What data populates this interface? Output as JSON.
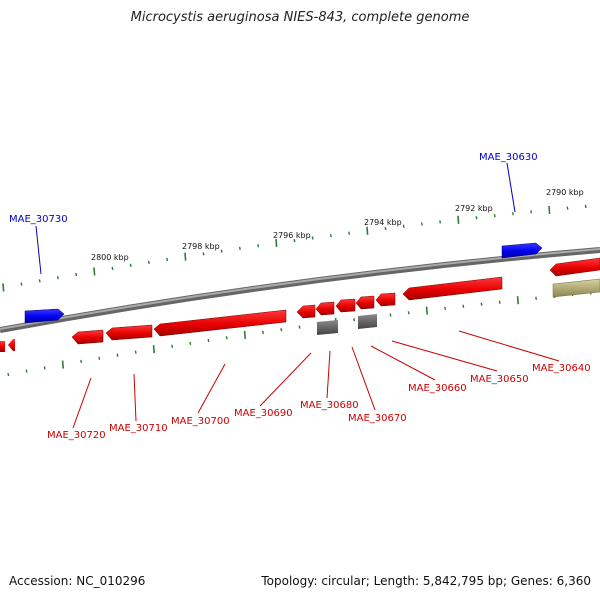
{
  "title": "Microcystis aeruginosa NIES-843, complete genome",
  "accession": "Accession: NC_010296",
  "summary": "Topology: circular; Length: 5,842,795 bp; Genes: 6,360",
  "colors": {
    "backbone": "#8a8a8a",
    "gene_forward_blue": "#0000ff",
    "gene_reverse_red": "#ff0000",
    "gene_gray": "#666666",
    "gene_olive": "#b8b070",
    "ticks": "#2e7d32",
    "label_blue": "#0000cc",
    "label_red": "#cc0000"
  },
  "scale_labels": [
    "2800 kbp",
    "2798 kbp",
    "2796 kbp",
    "2794 kbp",
    "2792 kbp",
    "2790 kbp"
  ],
  "gene_labels_top": [
    "MAE_30730",
    "MAE_30630"
  ],
  "gene_labels_bottom": [
    "MAE_30720",
    "MAE_30710",
    "MAE_30700",
    "MAE_30690",
    "MAE_30680",
    "MAE_30670",
    "MAE_30660",
    "MAE_30650",
    "MAE_30640"
  ]
}
